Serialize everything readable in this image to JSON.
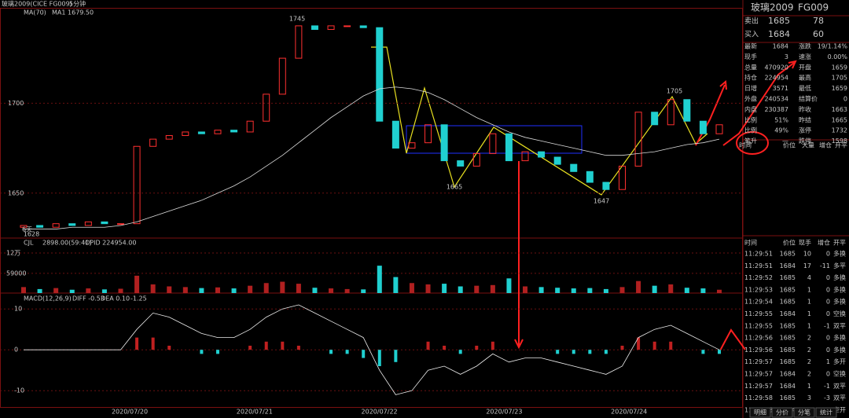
{
  "header": {
    "title": "玻璃2009(CICE FG009)",
    "period": "5分钟"
  },
  "price_pane": {
    "indicator": "MA(70)",
    "ma_value": "MA1 1679.50",
    "ylim": [
      1625,
      1753
    ],
    "yticks": [
      1650,
      1700
    ],
    "closes": [
      1632,
      1631,
      1633,
      1632,
      1634,
      1633,
      1633,
      1676,
      1680,
      1682,
      1684,
      1683,
      1685,
      1684,
      1690,
      1705,
      1725,
      1743,
      1741,
      1743,
      1743,
      1742,
      1690,
      1675,
      1678,
      1688,
      1668,
      1665,
      1672,
      1683,
      1668,
      1673,
      1670,
      1666,
      1662,
      1656,
      1652,
      1665,
      1695,
      1688,
      1702,
      1690,
      1683,
      1688
    ],
    "ma": [
      1630,
      1630,
      1630,
      1631,
      1631,
      1631,
      1632,
      1634,
      1637,
      1640,
      1643,
      1646,
      1650,
      1654,
      1659,
      1665,
      1671,
      1678,
      1685,
      1692,
      1698,
      1704,
      1708,
      1709,
      1708,
      1706,
      1702,
      1697,
      1692,
      1688,
      1684,
      1681,
      1679,
      1677,
      1675,
      1673,
      1671,
      1671,
      1672,
      1673,
      1675,
      1677,
      1678,
      1680
    ],
    "annotations": [
      "1745",
      "1665",
      "1647",
      "1705",
      "1628"
    ],
    "days_label": "6天"
  },
  "volume_pane": {
    "label": "CJL",
    "value": "2898.00(59:41)",
    "opid": "OPID 224954.00",
    "ylim": [
      0,
      160000
    ],
    "yticks": [
      {
        "value": 59000,
        "label": "59000"
      },
      {
        "value": 120000,
        "label": "12万"
      }
    ],
    "values": [
      18000,
      12000,
      15000,
      10000,
      14000,
      11000,
      13000,
      52000,
      26000,
      20000,
      18000,
      15000,
      17000,
      14000,
      22000,
      30000,
      34000,
      28000,
      16000,
      14000,
      12000,
      11000,
      82000,
      48000,
      30000,
      26000,
      28000,
      20000,
      22000,
      24000,
      44000,
      20000,
      18000,
      16000,
      14000,
      15000,
      12000,
      18000,
      36000,
      22000,
      26000,
      16000,
      14000,
      10000
    ]
  },
  "macd_pane": {
    "label": "MACD(12,26,9)",
    "diff": "DIFF -0.53",
    "dea": "DEA 0.10",
    "macd": "-1.25",
    "ylim": [
      -14,
      13.5
    ],
    "yticks": [
      -10,
      0,
      10
    ],
    "diff_values": [
      0,
      0,
      0,
      0,
      0,
      0,
      0,
      5,
      9,
      8,
      6,
      4,
      3,
      3,
      5,
      8,
      10,
      11,
      9,
      7,
      5,
      3,
      -5,
      -11,
      -10,
      -5,
      -4,
      -6,
      -4,
      -1,
      -3,
      -2,
      -2,
      -3,
      -4,
      -5,
      -6,
      -4,
      3,
      5,
      6,
      4,
      2,
      0
    ],
    "hist_values": [
      0,
      0,
      0,
      0,
      0,
      0,
      0,
      3,
      3,
      1,
      0,
      -1,
      -1,
      0,
      1,
      2,
      2,
      1,
      0,
      -1,
      -1,
      -2,
      -4,
      -3,
      0,
      2,
      1,
      -1,
      1,
      2,
      0,
      0,
      0,
      -1,
      -1,
      -1,
      -1,
      1,
      3,
      2,
      2,
      0,
      -1,
      -1
    ]
  },
  "dates": [
    "2020/07/20",
    "2020/07/21",
    "2020/07/22",
    "2020/07/23",
    "2020/07/24"
  ],
  "quote": {
    "name": "玻璃2009",
    "code": "FG009",
    "sell": [
      "卖出",
      "1685",
      "78"
    ],
    "buy": [
      "买入",
      "1684",
      "60"
    ],
    "rows": [
      [
        "最新",
        "1684",
        "涨跌",
        "19/1.14%"
      ],
      [
        "现手",
        "3",
        "速涨",
        "0.00%"
      ],
      [
        "总量",
        "470920",
        "开盘",
        "1659"
      ],
      [
        "持仓",
        "224954",
        "最高",
        "1705"
      ],
      [
        "日增",
        "3571",
        "最低",
        "1659"
      ],
      [
        "外盘",
        "240534",
        "结算价",
        "0"
      ],
      [
        "内盘",
        "230387",
        "昨收",
        "1663"
      ],
      [
        "比例",
        "51%",
        "昨结",
        "1665"
      ],
      [
        "比例",
        "49%",
        "涨停",
        "1732"
      ],
      [
        "笔升",
        "—",
        "跌停",
        "1598"
      ]
    ],
    "columns": [
      "时间",
      "价位",
      "大量",
      "增仓",
      "开平"
    ]
  },
  "trades": {
    "columns": [
      "时间",
      "价位",
      "现手",
      "增仓",
      "开平"
    ],
    "rows": [
      [
        "11:29:51",
        "1685",
        "10",
        "0",
        "多换"
      ],
      [
        "11:29:51",
        "1684",
        "17",
        "-11",
        "多平"
      ],
      [
        "11:29:52",
        "1685",
        "4",
        "0",
        "多换"
      ],
      [
        "11:29:53",
        "1685",
        "1",
        "0",
        "多换"
      ],
      [
        "11:29:54",
        "1685",
        "1",
        "0",
        "多换"
      ],
      [
        "11:29:55",
        "1684",
        "1",
        "0",
        "空换"
      ],
      [
        "11:29:55",
        "1685",
        "1",
        "-1",
        "双平"
      ],
      [
        "11:29:56",
        "1685",
        "2",
        "0",
        "多换"
      ],
      [
        "11:29:56",
        "1685",
        "2",
        "0",
        "多换"
      ],
      [
        "11:29:57",
        "1685",
        "2",
        "1",
        "多开"
      ],
      [
        "11:29:57",
        "1684",
        "2",
        "0",
        "空换"
      ],
      [
        "11:29:57",
        "1684",
        "1",
        "-1",
        "双平"
      ],
      [
        "11:29:58",
        "1685",
        "3",
        "-3",
        "双平"
      ],
      [
        "11:29:58",
        "1684",
        "2",
        "1",
        "空开"
      ],
      [
        "11:29:59",
        "1684",
        "3",
        "2",
        "空开"
      ]
    ],
    "tabs": [
      "明细",
      "分价",
      "分笔",
      "统计"
    ]
  }
}
